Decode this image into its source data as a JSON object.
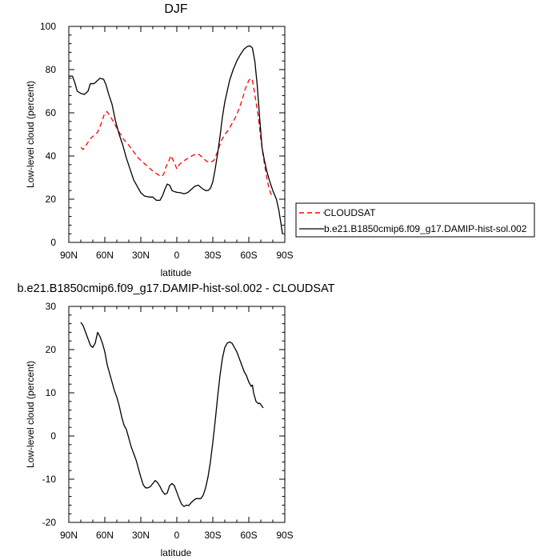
{
  "chart_data": [
    {
      "type": "line",
      "title": "DJF",
      "xlabel": "latitude",
      "ylabel": "Low-level cloud (percent)",
      "xlim": [
        -90,
        90
      ],
      "ylim": [
        0,
        100
      ],
      "x_ticks": [
        {
          "v": -90,
          "label": "90N"
        },
        {
          "v": -60,
          "label": "60N"
        },
        {
          "v": -30,
          "label": "30N"
        },
        {
          "v": 0,
          "label": "0"
        },
        {
          "v": 30,
          "label": "30S"
        },
        {
          "v": 60,
          "label": "60S"
        },
        {
          "v": 90,
          "label": "90S"
        }
      ],
      "y_ticks": [
        0,
        20,
        40,
        60,
        80,
        100
      ],
      "legend_position": "outside-right",
      "series": [
        {
          "name": "CLOUDSAT",
          "color": "#ff0000",
          "dash": "dashed",
          "points": [
            [
              -80,
              44
            ],
            [
              -78,
              43
            ],
            [
              -75,
              45.5
            ],
            [
              -72,
              48
            ],
            [
              -69,
              49.5
            ],
            [
              -66,
              51
            ],
            [
              -63,
              55
            ],
            [
              -60,
              60
            ],
            [
              -58,
              60.5
            ],
            [
              -55,
              58
            ],
            [
              -52,
              55
            ],
            [
              -48,
              51
            ],
            [
              -44,
              47.5
            ],
            [
              -40,
              45
            ],
            [
              -36,
              42
            ],
            [
              -32,
              39
            ],
            [
              -28,
              37
            ],
            [
              -24,
              35
            ],
            [
              -20,
              33
            ],
            [
              -16,
              31.5
            ],
            [
              -13,
              30.5
            ],
            [
              -11,
              31.5
            ],
            [
              -9,
              35
            ],
            [
              -6,
              38.5
            ],
            [
              -5,
              40.2
            ],
            [
              -3,
              38
            ],
            [
              -1,
              35.5
            ],
            [
              0,
              34
            ],
            [
              2,
              36
            ],
            [
              5,
              37.5
            ],
            [
              8,
              38.5
            ],
            [
              11,
              39.5
            ],
            [
              14,
              40.5
            ],
            [
              17,
              41
            ],
            [
              19,
              40.5
            ],
            [
              22,
              39
            ],
            [
              25,
              37.5
            ],
            [
              28,
              37
            ],
            [
              31,
              38
            ],
            [
              34,
              42
            ],
            [
              37,
              47
            ],
            [
              40,
              50
            ],
            [
              43,
              52
            ],
            [
              46,
              55
            ],
            [
              49,
              58
            ],
            [
              52,
              62
            ],
            [
              55,
              67
            ],
            [
              57,
              71
            ],
            [
              60,
              75
            ],
            [
              62,
              76
            ],
            [
              63,
              75
            ],
            [
              64,
              72
            ],
            [
              66,
              65
            ],
            [
              68,
              58
            ],
            [
              70,
              48
            ],
            [
              72,
              40
            ],
            [
              74,
              33
            ],
            [
              76,
              27
            ],
            [
              78,
              23
            ],
            [
              80,
              21
            ]
          ]
        },
        {
          "name": "b.e21.B1850cmip6.f09_g17.DAMIP-hist-sol.002",
          "color": "#000000",
          "dash": "solid",
          "points": [
            [
              -90,
              77
            ],
            [
              -87,
              77
            ],
            [
              -85,
              74
            ],
            [
              -83,
              70
            ],
            [
              -80,
              69
            ],
            [
              -77,
              68.5
            ],
            [
              -74,
              70
            ],
            [
              -72,
              73.5
            ],
            [
              -69,
              73.5
            ],
            [
              -67,
              74.5
            ],
            [
              -64,
              76
            ],
            [
              -61,
              75.5
            ],
            [
              -59,
              73
            ],
            [
              -57,
              69
            ],
            [
              -54,
              64
            ],
            [
              -51,
              56
            ],
            [
              -48,
              50
            ],
            [
              -45,
              45
            ],
            [
              -42,
              39
            ],
            [
              -39,
              34
            ],
            [
              -36,
              29
            ],
            [
              -33,
              26
            ],
            [
              -30,
              23
            ],
            [
              -27,
              21.5
            ],
            [
              -23,
              21
            ],
            [
              -20,
              21
            ],
            [
              -17,
              19.5
            ],
            [
              -14,
              19.5
            ],
            [
              -12,
              21.5
            ],
            [
              -10,
              24.5
            ],
            [
              -8,
              27
            ],
            [
              -6,
              26.5
            ],
            [
              -4,
              24
            ],
            [
              -2,
              23.5
            ],
            [
              0,
              23.2
            ],
            [
              3,
              23
            ],
            [
              6,
              22.5
            ],
            [
              9,
              23
            ],
            [
              12,
              24.5
            ],
            [
              15,
              26
            ],
            [
              18,
              26.5
            ],
            [
              21,
              25
            ],
            [
              24,
              24
            ],
            [
              26,
              24
            ],
            [
              28,
              25
            ],
            [
              30,
              28
            ],
            [
              32,
              34
            ],
            [
              34,
              41
            ],
            [
              36,
              49
            ],
            [
              38,
              58
            ],
            [
              40,
              65
            ],
            [
              42,
              70
            ],
            [
              44,
              75
            ],
            [
              47,
              80
            ],
            [
              50,
              84
            ],
            [
              53,
              87
            ],
            [
              56,
              89.5
            ],
            [
              59,
              90.8
            ],
            [
              61,
              91
            ],
            [
              63,
              90
            ],
            [
              65,
              84
            ],
            [
              67,
              73
            ],
            [
              69,
              58
            ],
            [
              71,
              44
            ],
            [
              73,
              38
            ],
            [
              75,
              33
            ],
            [
              77,
              29
            ],
            [
              80,
              24
            ],
            [
              83,
              20
            ],
            [
              85,
              15
            ],
            [
              87,
              8
            ],
            [
              88,
              4
            ]
          ]
        }
      ]
    },
    {
      "type": "line",
      "title": "b.e21.B1850cmip6.f09_g17.DAMIP-hist-sol.002 - CLOUDSAT",
      "xlabel": "latitude",
      "ylabel": "Low-level cloud (percent)",
      "xlim": [
        -90,
        90
      ],
      "ylim": [
        -20,
        30
      ],
      "x_ticks": [
        {
          "v": -90,
          "label": "90N"
        },
        {
          "v": -60,
          "label": "60N"
        },
        {
          "v": -30,
          "label": "30N"
        },
        {
          "v": 0,
          "label": "0"
        },
        {
          "v": 30,
          "label": "30S"
        },
        {
          "v": 60,
          "label": "60S"
        },
        {
          "v": 90,
          "label": "90S"
        }
      ],
      "y_ticks": [
        -20,
        -10,
        0,
        10,
        20,
        30
      ],
      "series": [
        {
          "color": "#000000",
          "dash": "solid",
          "points": [
            [
              -80,
              26.3
            ],
            [
              -78,
              25.5
            ],
            [
              -76,
              24
            ],
            [
              -74,
              22.5
            ],
            [
              -72,
              21
            ],
            [
              -70,
              20.5
            ],
            [
              -68,
              21.5
            ],
            [
              -66,
              24
            ],
            [
              -64,
              23
            ],
            [
              -62,
              21.5
            ],
            [
              -60,
              19.5
            ],
            [
              -58,
              16.5
            ],
            [
              -56,
              14.5
            ],
            [
              -54,
              12.5
            ],
            [
              -52,
              10.5
            ],
            [
              -50,
              9
            ],
            [
              -48,
              7
            ],
            [
              -46,
              4.5
            ],
            [
              -44,
              2.5
            ],
            [
              -42,
              1.5
            ],
            [
              -40,
              -0.5
            ],
            [
              -38,
              -2.5
            ],
            [
              -36,
              -4
            ],
            [
              -34,
              -5.5
            ],
            [
              -32,
              -7.5
            ],
            [
              -30,
              -9.5
            ],
            [
              -28,
              -11.3
            ],
            [
              -26,
              -12
            ],
            [
              -24,
              -12
            ],
            [
              -22,
              -11.7
            ],
            [
              -20,
              -11
            ],
            [
              -18,
              -10.3
            ],
            [
              -16,
              -10.8
            ],
            [
              -14,
              -11.7
            ],
            [
              -12,
              -12.8
            ],
            [
              -10,
              -13.5
            ],
            [
              -8,
              -13.2
            ],
            [
              -6,
              -11.5
            ],
            [
              -4,
              -11
            ],
            [
              -2,
              -11.5
            ],
            [
              0,
              -13
            ],
            [
              2,
              -14.5
            ],
            [
              4,
              -15.8
            ],
            [
              6,
              -16.3
            ],
            [
              8,
              -16
            ],
            [
              10,
              -16.1
            ],
            [
              12,
              -15.4
            ],
            [
              14,
              -14.9
            ],
            [
              16,
              -14.5
            ],
            [
              18,
              -14.5
            ],
            [
              20,
              -14.5
            ],
            [
              22,
              -13.7
            ],
            [
              24,
              -12
            ],
            [
              26,
              -9.5
            ],
            [
              28,
              -6
            ],
            [
              30,
              -1.5
            ],
            [
              32,
              3.5
            ],
            [
              34,
              9
            ],
            [
              36,
              14
            ],
            [
              38,
              18
            ],
            [
              40,
              20.5
            ],
            [
              42,
              21.5
            ],
            [
              44,
              21.8
            ],
            [
              46,
              21.5
            ],
            [
              48,
              20.5
            ],
            [
              50,
              19.5
            ],
            [
              52,
              18
            ],
            [
              54,
              16.5
            ],
            [
              56,
              15
            ],
            [
              58,
              14
            ],
            [
              60,
              12.5
            ],
            [
              62,
              11.5
            ],
            [
              63,
              11.8
            ],
            [
              64,
              10
            ],
            [
              66,
              8
            ],
            [
              68,
              7.5
            ],
            [
              69,
              7.6
            ],
            [
              70,
              7.3
            ],
            [
              72,
              6.5
            ]
          ]
        }
      ]
    }
  ]
}
